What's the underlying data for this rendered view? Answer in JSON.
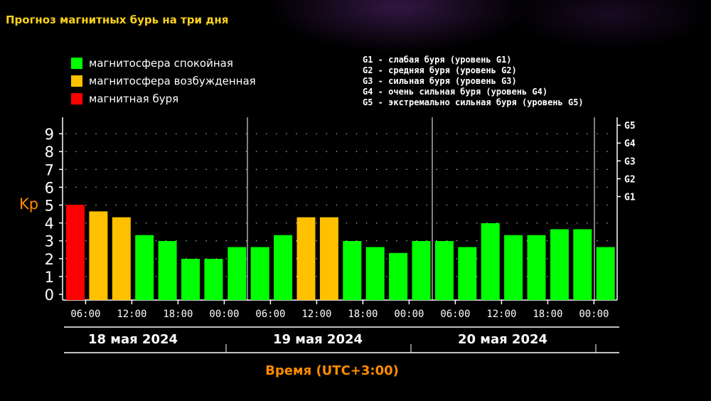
{
  "header": {
    "title": "Прогноз магнитных бурь на три дня"
  },
  "legend": [
    {
      "label": "магнитосфера спокойная",
      "color": "#00ff00"
    },
    {
      "label": "магнитосфера возбужденная",
      "color": "#ffc000"
    },
    {
      "label": "магнитная буря",
      "color": "#ff0000"
    }
  ],
  "g_levels": [
    "G1 - слабая буря (уровень G1)",
    "G2 - средняя буря (уровень G2)",
    "G3 - сильная буря (уровень G3)",
    "G4 - очень сильная буря (уровень G4)",
    "G5 - экстремально сильная буря (уровень G5)"
  ],
  "chart_data": {
    "type": "bar",
    "ylabel": "Kp",
    "xlabel": "Время (UTC+3:00)",
    "ylim": [
      0,
      9
    ],
    "yticks": [
      "0",
      "1",
      "2",
      "3",
      "4",
      "5",
      "6",
      "7",
      "8",
      "9"
    ],
    "right_ticks": [
      {
        "label": "G1",
        "kp": 5
      },
      {
        "label": "G2",
        "kp": 6
      },
      {
        "label": "G3",
        "kp": 7
      },
      {
        "label": "G4",
        "kp": 8
      },
      {
        "label": "G5",
        "kp": 9
      }
    ],
    "days": [
      "18 мая 2024",
      "19 мая 2024",
      "20 мая 2024"
    ],
    "xtick_labels": [
      "06:00",
      "12:00",
      "18:00",
      "00:00",
      "06:00",
      "12:00",
      "18:00",
      "00:00",
      "06:00",
      "12:00",
      "18:00",
      "00:00"
    ],
    "values": [
      4.7,
      4.33,
      4.0,
      3.0,
      2.67,
      1.67,
      1.67,
      2.33,
      2.33,
      3.0,
      4.0,
      4.0,
      2.67,
      2.33,
      2.0,
      2.67,
      2.67,
      2.33,
      3.67,
      3.0,
      3.0,
      3.33,
      3.33,
      2.33
    ],
    "colors": {
      "quiet": "#00ff00",
      "active": "#ffc000",
      "storm": "#ff0000",
      "axis": "#ffffff",
      "grid": "#bbbbbb",
      "label_accent": "#ff8c00"
    },
    "grid": true
  }
}
